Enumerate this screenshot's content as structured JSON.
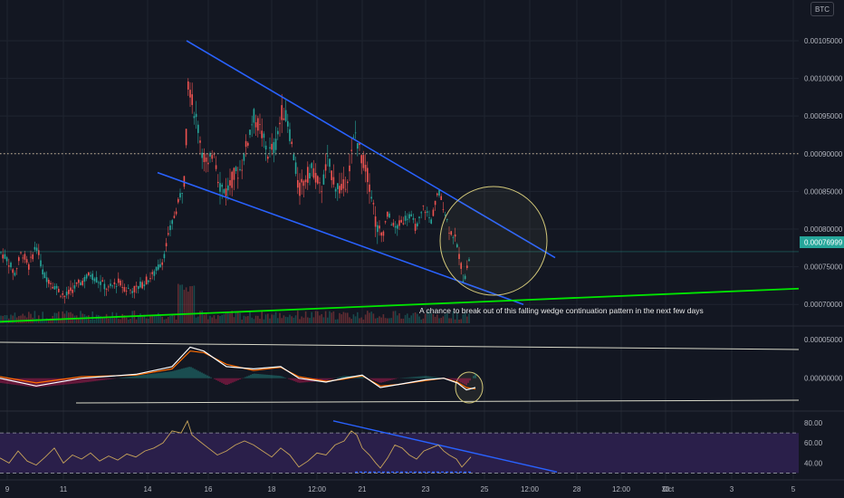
{
  "currency_badge": "BTC",
  "colors": {
    "background": "#131722",
    "grid": "#1f2430",
    "candle_up": "#26a69a",
    "candle_down": "#ef5350",
    "wedge_lines": "#2962ff",
    "support_line": "#00e600",
    "circle": "#d4c97a",
    "macd_line": "#ffffff",
    "signal_line": "#ff6d00",
    "rsi_line": "#c8a45a",
    "rsi_band": "#2a1f4a",
    "price_tag": "#26a69a"
  },
  "annotation": "A chance to break out of this falling wedge continuation pattern in the next few days",
  "price_tag": "0.00076999",
  "chart_data": [
    {
      "type": "candlestick",
      "title": "",
      "x_tick_labels": [
        "9",
        "11",
        "14",
        "16",
        "18",
        "12:00",
        "21",
        "23",
        "25",
        "12:00",
        "28",
        "12:00",
        "30",
        "Oct",
        "3",
        "5"
      ],
      "y_tick_labels": [
        "0.00105000",
        "0.00100000",
        "0.00095000",
        "0.00090000",
        "0.00085000",
        "0.00080000",
        "0.00075000",
        "0.00070000"
      ],
      "ylim": [
        0.000675,
        0.00108
      ],
      "horizontal_level": 0.0009,
      "last_price": 0.00076999,
      "price_path": [
        [
          0,
          0.00077
        ],
        [
          8,
          0.00076
        ],
        [
          16,
          0.00074
        ],
        [
          24,
          0.00077
        ],
        [
          32,
          0.00075
        ],
        [
          40,
          0.00078
        ],
        [
          48,
          0.00074
        ],
        [
          56,
          0.00073
        ],
        [
          64,
          0.00072
        ],
        [
          72,
          0.00071
        ],
        [
          80,
          0.00072
        ],
        [
          90,
          0.00073
        ],
        [
          100,
          0.00074
        ],
        [
          110,
          0.00073
        ],
        [
          120,
          0.00072
        ],
        [
          130,
          0.00073
        ],
        [
          140,
          0.00072
        ],
        [
          150,
          0.00072
        ],
        [
          160,
          0.00073
        ],
        [
          170,
          0.00074
        ],
        [
          180,
          0.00076
        ],
        [
          188,
          0.0008
        ],
        [
          196,
          0.00083
        ],
        [
          204,
          0.00087
        ],
        [
          208,
          0.001
        ],
        [
          212,
          0.00097
        ],
        [
          218,
          0.00094
        ],
        [
          224,
          0.0009
        ],
        [
          230,
          0.00088
        ],
        [
          236,
          0.00091
        ],
        [
          242,
          0.00086
        ],
        [
          250,
          0.00085
        ],
        [
          258,
          0.00087
        ],
        [
          266,
          0.00088
        ],
        [
          272,
          0.00091
        ],
        [
          280,
          0.00095
        ],
        [
          288,
          0.00093
        ],
        [
          296,
          0.0009
        ],
        [
          304,
          0.00091
        ],
        [
          312,
          0.00096
        ],
        [
          318,
          0.00094
        ],
        [
          324,
          0.0009
        ],
        [
          330,
          0.00085
        ],
        [
          338,
          0.00087
        ],
        [
          346,
          0.00088
        ],
        [
          354,
          0.00085
        ],
        [
          362,
          0.00089
        ],
        [
          370,
          0.00086
        ],
        [
          378,
          0.00085
        ],
        [
          386,
          0.00088
        ],
        [
          392,
          0.00093
        ],
        [
          398,
          0.0009
        ],
        [
          404,
          0.00088
        ],
        [
          410,
          0.00085
        ],
        [
          416,
          0.0008
        ],
        [
          422,
          0.00079
        ],
        [
          428,
          0.00082
        ],
        [
          436,
          0.0008
        ],
        [
          444,
          0.00081
        ],
        [
          452,
          0.00082
        ],
        [
          460,
          0.0008
        ],
        [
          468,
          0.00083
        ],
        [
          476,
          0.00081
        ],
        [
          484,
          0.00085
        ],
        [
          490,
          0.00083
        ],
        [
          496,
          0.0008
        ],
        [
          502,
          0.00079
        ],
        [
          508,
          0.00076
        ],
        [
          512,
          0.00073
        ],
        [
          516,
          0.00075
        ],
        [
          520,
          0.00077
        ]
      ]
    },
    {
      "type": "line",
      "title": "",
      "series": [
        {
          "values": [
            [
              0,
              0
            ],
            [
              40,
              -1e-05
            ],
            [
              90,
              0
            ],
            [
              150,
              5e-06
            ],
            [
              190,
              1.5e-05
            ],
            [
              210,
              4e-05
            ],
            [
              225,
              3.5e-05
            ],
            [
              250,
              1.5e-05
            ],
            [
              280,
              1.2e-05
            ],
            [
              310,
              1.5e-05
            ],
            [
              330,
              0
            ],
            [
              360,
              -5e-06
            ],
            [
              380,
              0
            ],
            [
              400,
              4e-06
            ],
            [
              420,
              -1.2e-05
            ],
            [
              440,
              -8e-06
            ],
            [
              470,
              -2e-06
            ],
            [
              490,
              0
            ],
            [
              505,
              -6e-06
            ],
            [
              515,
              -1.5e-05
            ],
            [
              525,
              -1.2e-05
            ]
          ]
        },
        {
          "values": [
            [
              0,
              2e-06
            ],
            [
              40,
              -6e-06
            ],
            [
              90,
              2e-06
            ],
            [
              150,
              4e-06
            ],
            [
              190,
              1.2e-05
            ],
            [
              210,
              3.5e-05
            ],
            [
              225,
              3.3e-05
            ],
            [
              250,
              1.8e-05
            ],
            [
              280,
              1e-05
            ],
            [
              310,
              1.4e-05
            ],
            [
              330,
              2e-06
            ],
            [
              360,
              -4e-06
            ],
            [
              380,
              -1e-06
            ],
            [
              400,
              3e-06
            ],
            [
              420,
              -1e-05
            ],
            [
              440,
              -8e-06
            ],
            [
              470,
              -3e-06
            ],
            [
              490,
              0
            ],
            [
              505,
              -5e-06
            ],
            [
              515,
              -1.2e-05
            ],
            [
              525,
              -1.4e-05
            ]
          ]
        }
      ],
      "y_tick_labels": [
        "0.00005000",
        "0.00000000"
      ],
      "ylim": [
        -4e-05,
        6.5e-05
      ]
    },
    {
      "type": "line",
      "title": "",
      "series": [
        {
          "values": [
            [
              0,
              45
            ],
            [
              10,
              40
            ],
            [
              20,
              52
            ],
            [
              30,
              42
            ],
            [
              40,
              38
            ],
            [
              50,
              46
            ],
            [
              60,
              55
            ],
            [
              70,
              40
            ],
            [
              80,
              48
            ],
            [
              90,
              44
            ],
            [
              100,
              50
            ],
            [
              110,
              42
            ],
            [
              120,
              47
            ],
            [
              130,
              43
            ],
            [
              140,
              49
            ],
            [
              150,
              46
            ],
            [
              160,
              52
            ],
            [
              170,
              55
            ],
            [
              180,
              60
            ],
            [
              190,
              72
            ],
            [
              200,
              70
            ],
            [
              207,
              82
            ],
            [
              212,
              68
            ],
            [
              220,
              62
            ],
            [
              230,
              55
            ],
            [
              240,
              48
            ],
            [
              250,
              52
            ],
            [
              260,
              58
            ],
            [
              270,
              62
            ],
            [
              280,
              58
            ],
            [
              290,
              52
            ],
            [
              300,
              46
            ],
            [
              310,
              55
            ],
            [
              320,
              48
            ],
            [
              330,
              36
            ],
            [
              340,
              42
            ],
            [
              350,
              50
            ],
            [
              360,
              48
            ],
            [
              370,
              58
            ],
            [
              380,
              62
            ],
            [
              388,
              72
            ],
            [
              394,
              68
            ],
            [
              400,
              55
            ],
            [
              408,
              48
            ],
            [
              415,
              40
            ],
            [
              420,
              35
            ],
            [
              428,
              45
            ],
            [
              436,
              58
            ],
            [
              444,
              55
            ],
            [
              452,
              48
            ],
            [
              460,
              44
            ],
            [
              468,
              52
            ],
            [
              476,
              55
            ],
            [
              484,
              58
            ],
            [
              490,
              52
            ],
            [
              496,
              48
            ],
            [
              504,
              44
            ],
            [
              510,
              36
            ],
            [
              514,
              40
            ],
            [
              520,
              46
            ]
          ]
        }
      ],
      "y_tick_labels": [
        "80.00",
        "60.00",
        "40.00"
      ],
      "ylim": [
        25,
        90
      ],
      "band": [
        30,
        70
      ]
    }
  ]
}
